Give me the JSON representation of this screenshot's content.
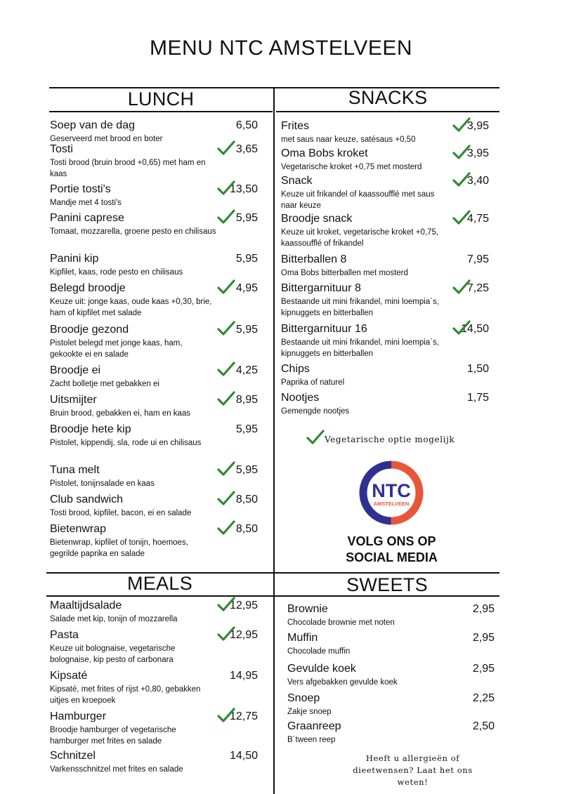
{
  "title": "MENU NTC AMSTELVEEN",
  "sections": {
    "lunch": "LUNCH",
    "snacks": "SNACKS",
    "meals": "MEALS",
    "sweets": "SWEETS"
  },
  "lunch": [
    {
      "name": "Soep van de dag",
      "desc": "Geserveerd met brood en boter",
      "price": "6,50",
      "veg": false
    },
    {
      "name": "Tosti",
      "desc": "Tosti brood (bruin brood +0,65) met ham en kaas",
      "price": "3,65",
      "veg": true
    },
    {
      "name": "Portie tosti's",
      "desc": "Mandje met 4 tosti's",
      "price": "13,50",
      "veg": true
    },
    {
      "name": "Panini caprese",
      "desc": "Tomaat, mozzarella, groene pesto en chilisaus",
      "price": "5,95",
      "veg": true
    },
    {
      "name": "Panini kip",
      "desc": "Kipfilet, kaas, rode pesto en chilisaus",
      "price": "5,95",
      "veg": false
    },
    {
      "name": "Belegd broodje",
      "desc": "Keuze uit: jonge kaas, oude kaas +0,30, brie, ham of kipfilet met salade",
      "price": "4,95",
      "veg": true
    },
    {
      "name": "Broodje gezond",
      "desc": "Pistolet belegd met jonge kaas, ham, gekookte ei en salade",
      "price": "5,95",
      "veg": true
    },
    {
      "name": "Broodje ei",
      "desc": "Zacht bolletje met gebakken ei",
      "price": "4,25",
      "veg": true
    },
    {
      "name": "Uitsmijter",
      "desc": "Bruin brood, gebakken ei, ham en kaas",
      "price": "8,95",
      "veg": true
    },
    {
      "name": "Broodje hete kip",
      "desc": "Pistolet, kippendij, sla, rode ui en chilisaus",
      "price": "5,95",
      "veg": false
    },
    {
      "name": "Tuna melt",
      "desc": "Pistolet, tonijnsalade en kaas",
      "price": "5,95",
      "veg": true
    },
    {
      "name": "Club sandwich",
      "desc": "Tosti brood, kipfilet, bacon, ei en salade",
      "price": "8,50",
      "veg": true
    },
    {
      "name": "Bietenwrap",
      "desc": "Bietenwrap, kipfilet of tonijn, hoemoes, gegrilde paprika en salade",
      "price": "8,50",
      "veg": true
    }
  ],
  "snacks": [
    {
      "name": "Frites",
      "desc": "met saus naar keuze, satésaus +0,50",
      "price": "3,95",
      "veg": true
    },
    {
      "name": "Oma Bobs kroket",
      "desc": "Vegetarische kroket +0,75 met mosterd",
      "price": "3,95",
      "veg": true
    },
    {
      "name": "Snack",
      "desc": "Keuze uit frikandel of kaassoufflé met saus naar keuze",
      "price": "3,40",
      "veg": true
    },
    {
      "name": "Broodje snack",
      "desc": "Keuze uit kroket, vegetarische kroket +0,75, kaassoufflé of frikandel",
      "price": "4,75",
      "veg": true
    },
    {
      "name": "Bitterballen 8",
      "desc": "Oma Bobs bitterballen met mosterd",
      "price": "7,95",
      "veg": false
    },
    {
      "name": "Bittergarnituur 8",
      "desc": "Bestaande uit mini frikandel, mini loempia´s, kipnuggets en bitterballen",
      "price": "7,25",
      "veg": true
    },
    {
      "name": "Bittergarnituur 16",
      "desc": "Bestaande uit mini frikandel, mini loempia´s, kipnuggets en bitterballen",
      "price": "14,50",
      "veg": true
    },
    {
      "name": "Chips",
      "desc": "Paprika of naturel",
      "price": "1,50",
      "veg": false
    },
    {
      "name": "Nootjes",
      "desc": "Gemengde nootjes",
      "price": "1,75",
      "veg": false
    }
  ],
  "meals": [
    {
      "name": "Maaltijdsalade",
      "desc": "Salade met kip, tonijn of mozzarella",
      "price": "12,95",
      "veg": true
    },
    {
      "name": "Pasta",
      "desc": "Keuze uit bolognaise, vegetarische bolognaise, kip pesto of carbonara",
      "price": "12,95",
      "veg": true
    },
    {
      "name": "Kipsaté",
      "desc": "Kipsaté, met frites of rijst +0,80, gebakken uitjes en kroepoek",
      "price": "14,95",
      "veg": false
    },
    {
      "name": "Hamburger",
      "desc": "Broodje hamburger of vegetarische hamburger met frites en salade",
      "price": "12,75",
      "veg": true
    },
    {
      "name": "Schnitzel",
      "desc": "Varkensschnitzel met frites en salade",
      "price": "14,50",
      "veg": false
    }
  ],
  "sweets": [
    {
      "name": "Brownie",
      "desc": "Chocolade brownie met noten",
      "price": "2,95"
    },
    {
      "name": "Muffin",
      "desc": "Chocolade muffin",
      "price": "2,95"
    },
    {
      "name": "Gevulde koek",
      "desc": "Vers afgebakken gevulde koek",
      "price": "2,95"
    },
    {
      "name": "Snoep",
      "desc": "Zakje snoep",
      "price": "2,25"
    },
    {
      "name": "Graanreep",
      "desc": "B´tween reep",
      "price": "2,50"
    }
  ],
  "veg_note": "Vegetarische optie mogelijk",
  "logo": {
    "text": "NTC",
    "subtext": "AMSTELVEEN",
    "color_blue": "#2e3192",
    "color_orange": "#e8563a"
  },
  "social": {
    "line1": "VOLG ONS OP",
    "line2": "SOCIAL MEDIA"
  },
  "allergy_note": "Heeft u allergieën of dieetwensen? Laat het ons weten!",
  "check_color": "#2f8a2f"
}
